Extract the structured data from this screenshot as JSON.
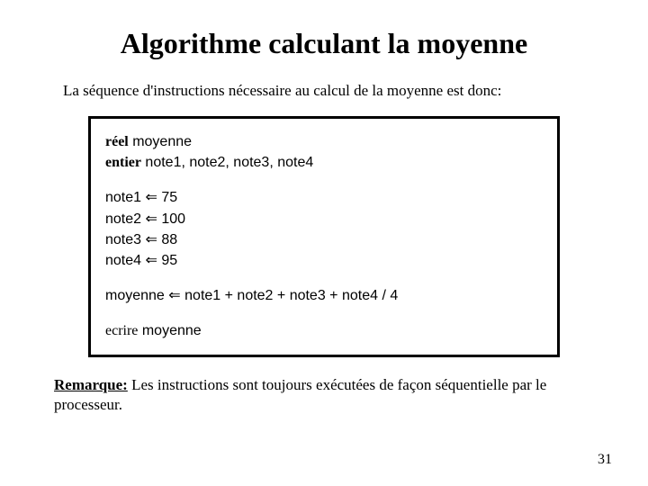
{
  "title": "Algorithme calculant la moyenne",
  "intro": "La séquence d'instructions nécessaire au calcul de la moyenne est donc:",
  "code": {
    "decl1_kw": "réel",
    "decl1_vars": " moyenne",
    "decl2_kw": "entier",
    "decl2_vars": " note1, note2, note3, note4",
    "assigns": [
      {
        "var": "note1",
        "val": "75"
      },
      {
        "var": "note2",
        "val": "100"
      },
      {
        "var": "note3",
        "val": "88"
      },
      {
        "var": "note4",
        "val": "95"
      }
    ],
    "mean_var": "moyenne",
    "mean_expr": "note1 + note2 + note3 + note4  / 4",
    "out_kw": "ecrire",
    "out_var": " moyenne",
    "arrow": "⇐"
  },
  "remark_label": "Remarque:",
  "remark_text": " Les instructions sont toujours exécutées de façon séquentielle par le processeur.",
  "page_number": "31"
}
